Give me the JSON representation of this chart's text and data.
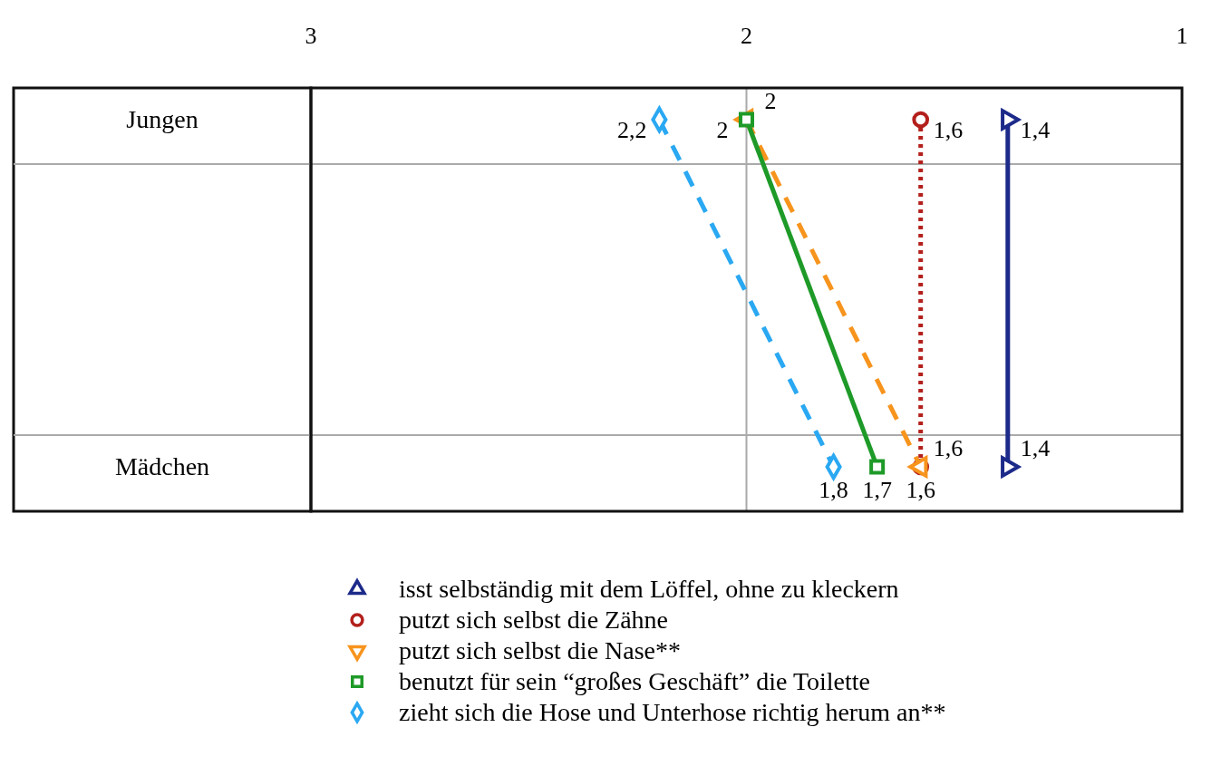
{
  "chart_data": {
    "type": "line",
    "orientation": "horizontal",
    "categories": [
      "Jungen",
      "Mädchen"
    ],
    "xlim": [
      3,
      1
    ],
    "xticks": [
      3,
      2,
      1
    ],
    "grid": "x",
    "legend": "bottom",
    "series": [
      {
        "name": "isst selbständig mit dem Löffel, ohne zu kleckern",
        "color": "#1c2a8a",
        "values": [
          1.4,
          1.4
        ],
        "value_labels": [
          "1,4",
          "1,4"
        ],
        "marker": "triangle",
        "line_style": "solid"
      },
      {
        "name": "putzt sich selbst die Zähne",
        "color": "#b3201c",
        "values": [
          1.6,
          1.6
        ],
        "value_labels": [
          "1,6",
          "1,6"
        ],
        "marker": "circle",
        "line_style": "dotted"
      },
      {
        "name": "putzt sich selbst die Nase**",
        "color": "#f7941d",
        "values": [
          2,
          1.6
        ],
        "value_labels": [
          "2",
          "1,6"
        ],
        "marker": "triangle",
        "line_style": "dashed"
      },
      {
        "name": "benutzt für sein “großes Geschäft” die Toilette",
        "color": "#1e9a28",
        "values": [
          2,
          1.7
        ],
        "value_labels": [
          "2",
          "1,7"
        ],
        "marker": "square",
        "line_style": "solid"
      },
      {
        "name": "zieht sich die Hose und Unterhose richtig herum an**",
        "color": "#2aa8f2",
        "values": [
          2.2,
          1.8
        ],
        "value_labels": [
          "2,2",
          "1,8"
        ],
        "marker": "diamond",
        "line_style": "dashed"
      }
    ]
  }
}
